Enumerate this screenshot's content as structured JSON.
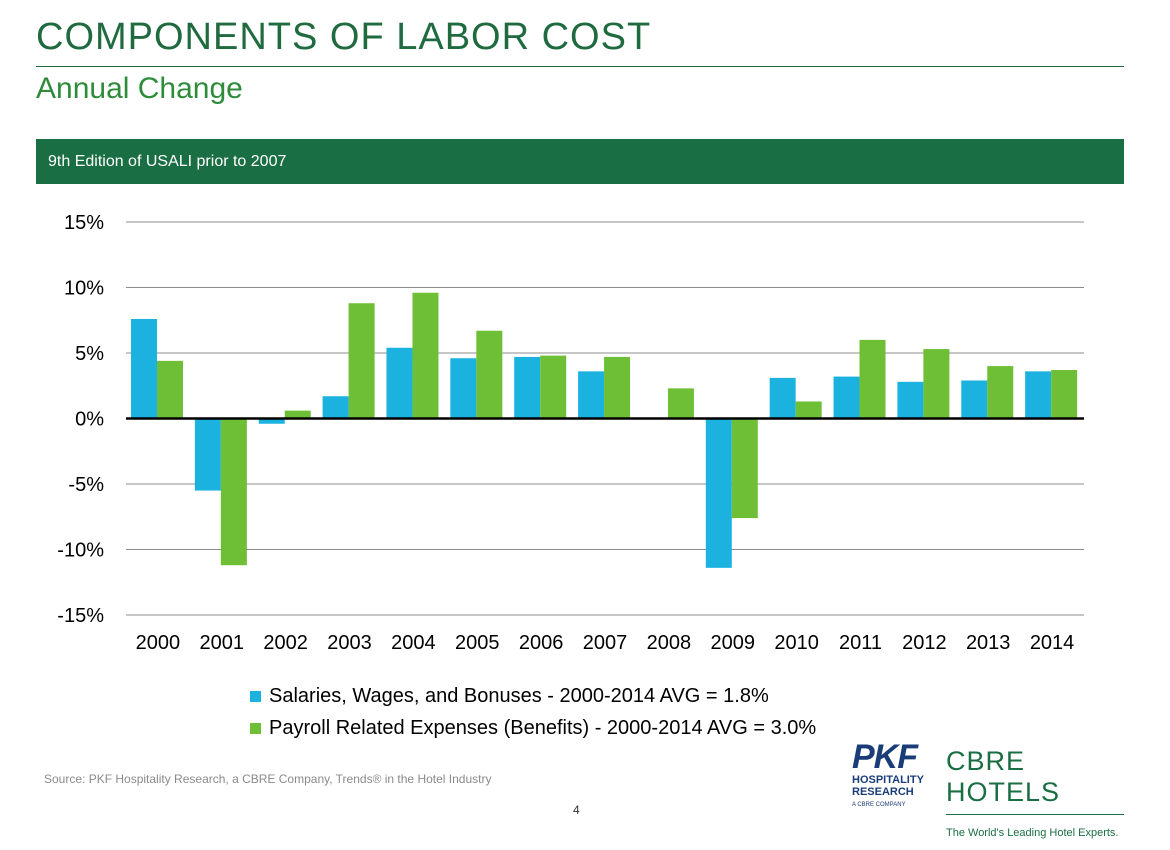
{
  "header": {
    "title": "COMPONENTS OF LABOR COST",
    "subtitle": "Annual Change",
    "banner": "9th Edition of USALI prior to 2007"
  },
  "chart_data": {
    "type": "bar",
    "categories": [
      "2000",
      "2001",
      "2002",
      "2003",
      "2004",
      "2005",
      "2006",
      "2007",
      "2008",
      "2009",
      "2010",
      "2011",
      "2012",
      "2013",
      "2014"
    ],
    "series": [
      {
        "name": "Salaries, Wages, and Bonuses - 2000-2014 AVG = 1.8%",
        "color": "#1cb2e0",
        "values": [
          7.6,
          -5.5,
          -0.4,
          1.7,
          5.4,
          4.6,
          4.7,
          3.6,
          0.0,
          -11.4,
          3.1,
          3.2,
          2.8,
          2.9,
          3.6
        ]
      },
      {
        "name": "Payroll Related Expenses (Benefits) - 2000-2014 AVG = 3.0%",
        "color": "#6ebf35",
        "values": [
          4.4,
          -11.2,
          0.6,
          8.8,
          9.6,
          6.7,
          4.8,
          4.7,
          2.3,
          -7.6,
          1.3,
          6.0,
          5.3,
          4.0,
          3.7
        ]
      }
    ],
    "yticks": [
      "15%",
      "10%",
      "5%",
      "0%",
      "-5%",
      "-10%",
      "-15%"
    ],
    "ylim": [
      -15,
      15
    ],
    "grid": true,
    "legend_position": "bottom"
  },
  "footer": {
    "source": "Source: PKF Hospitality Research, a CBRE Company, Trends® in the Hotel Industry",
    "page_number": "4"
  },
  "logos": {
    "pkf": "PKF",
    "pkf_line1": "HOSPITALITY",
    "pkf_line2": "RESEARCH",
    "pkf_line3": "A CBRE COMPANY",
    "cbre": "CBRE HOTELS",
    "cbre_tagline": "The World's Leading Hotel Experts."
  }
}
